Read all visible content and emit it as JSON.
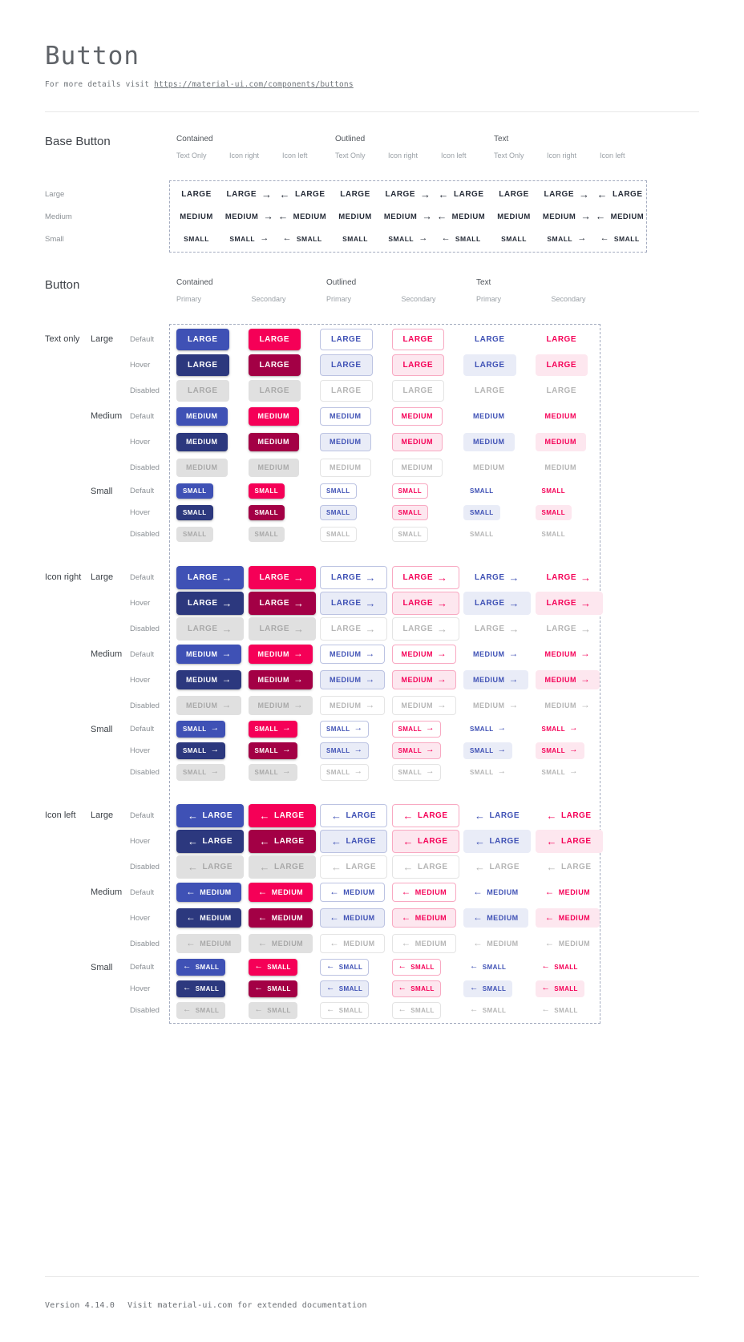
{
  "page": {
    "title": "Button",
    "subtitle_prefix": "For more details visit ",
    "subtitle_link": "https://material-ui.com/components/buttons",
    "footer_version": "Version 4.14.0",
    "footer_note": "Visit material-ui.com for extended documentation"
  },
  "colors": {
    "primary": "#3f51b5",
    "primary_dark": "#2c387e",
    "secondary": "#f50057",
    "secondary_dark": "#a30045",
    "primary_tint": "#e9ecf7",
    "secondary_tint": "#fde7ef",
    "primary_border": "#bcc3e2",
    "secondary_border": "#f8a9c2",
    "disabled_bg": "#e0e0e0",
    "disabled_text": "#a9a9a9",
    "base_text": "#262c38",
    "dashed_border": "#a3abbf"
  },
  "icons": {
    "arrow_right": "→",
    "arrow_left": "←"
  },
  "base_button": {
    "section_title": "Base Button",
    "groups": [
      {
        "label": "Contained",
        "subcolumns": [
          "Text Only",
          "Icon right",
          "Icon left"
        ]
      },
      {
        "label": "Outlined",
        "subcolumns": [
          "Text Only",
          "Icon right",
          "Icon left"
        ]
      },
      {
        "label": "Text",
        "subcolumns": [
          "Text Only",
          "Icon right",
          "Icon left"
        ]
      }
    ],
    "rows": [
      {
        "label": "Large",
        "button_text": "LARGE"
      },
      {
        "label": "Medium",
        "button_text": "MEDIUM"
      },
      {
        "label": "Small",
        "button_text": "SMALL"
      }
    ]
  },
  "button_section": {
    "section_title": "Button",
    "groups": [
      {
        "label": "Contained",
        "subcolumns": [
          "Primary",
          "Secondary"
        ]
      },
      {
        "label": "Outlined",
        "subcolumns": [
          "Primary",
          "Secondary"
        ]
      },
      {
        "label": "Text",
        "subcolumns": [
          "Primary",
          "Secondary"
        ]
      }
    ],
    "row_groups": [
      {
        "label": "Text only",
        "icon": "none"
      },
      {
        "label": "Icon right",
        "icon": "right"
      },
      {
        "label": "Icon left",
        "icon": "left"
      }
    ],
    "sizes": [
      {
        "label": "Large",
        "key": "lg",
        "button_text": "LARGE"
      },
      {
        "label": "Medium",
        "key": "md",
        "button_text": "MEDIUM"
      },
      {
        "label": "Small",
        "key": "sm",
        "button_text": "SMALL"
      }
    ],
    "states": [
      "Default",
      "Hover",
      "Disabled"
    ]
  }
}
